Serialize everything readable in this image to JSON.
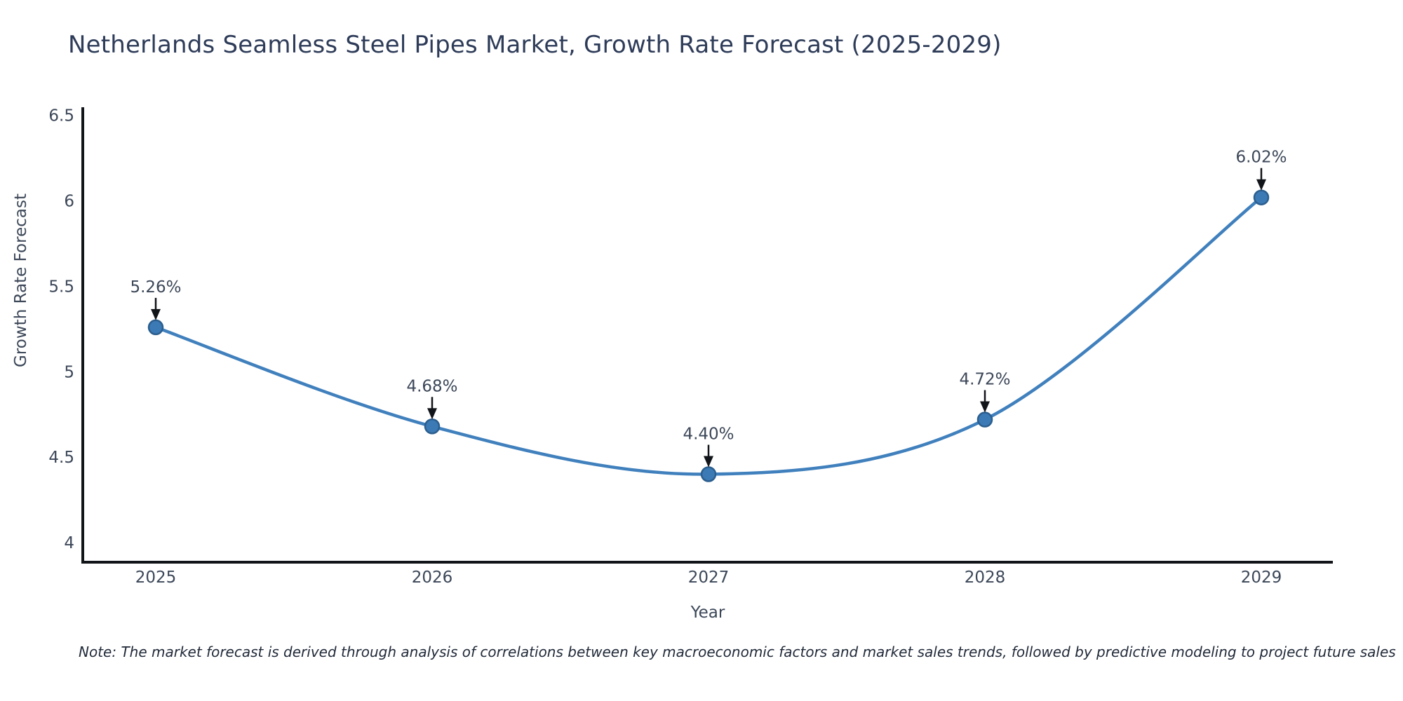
{
  "title": "Netherlands Seamless Steel Pipes Market, Growth Rate Forecast (2025-2029)",
  "note": "Note: The market forecast is derived through analysis of correlations between key macroeconomic factors and market sales trends, followed by predictive modeling to project future sales",
  "colors": {
    "background": "#ffffff",
    "axis": "#111418",
    "text": "#3c4758",
    "title_text": "#2e3c59",
    "note_text": "#222b3a",
    "line": "#4080bd",
    "marker_fill": "#3c7ab6",
    "marker_edge": "#2b5e8e",
    "annotation_arrow": "#111418"
  },
  "chart_data": {
    "type": "line",
    "title": "Netherlands Seamless Steel Pipes Market, Growth Rate Forecast (2025-2029)",
    "x": [
      2025,
      2026,
      2027,
      2028,
      2029
    ],
    "values": [
      5.26,
      4.68,
      4.4,
      4.72,
      6.02
    ],
    "point_labels": [
      "5.26%",
      "4.68%",
      "4.40%",
      "4.72%",
      "6.02%"
    ],
    "series_name": "Growth Rate Forecast",
    "xlabel": "Year",
    "ylabel": "Growth Rate Forecast",
    "ylim": [
      3.885,
      6.54
    ],
    "yticks": [
      4,
      4.5,
      5,
      5.5,
      6,
      6.5
    ],
    "ytick_labels": [
      "4",
      "4.5",
      "5",
      "5.5",
      "6",
      "6.5"
    ],
    "xtick_labels": [
      "2025",
      "2026",
      "2027",
      "2028",
      "2029"
    ],
    "grid": false,
    "legend": "none",
    "line_shape": "spline",
    "marker": "circle"
  }
}
